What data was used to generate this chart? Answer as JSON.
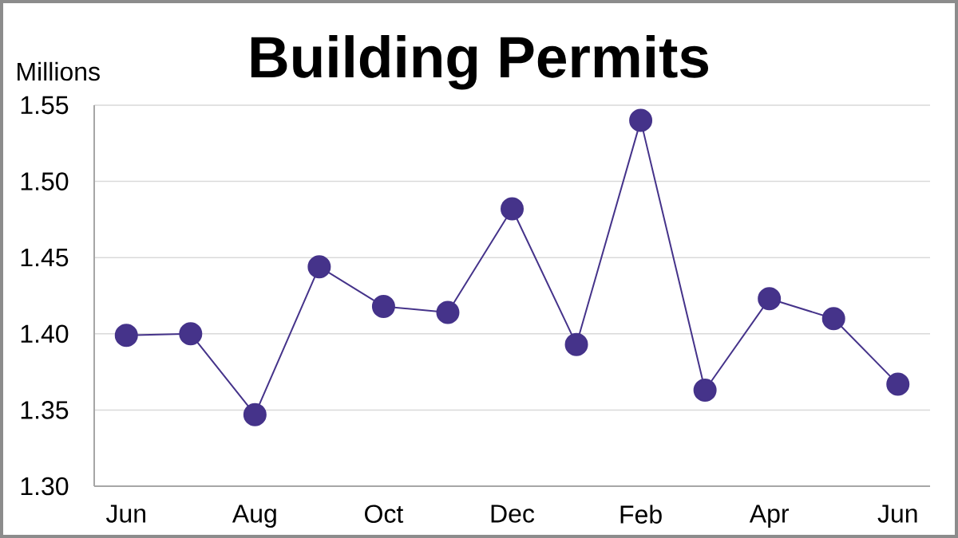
{
  "chart_data": {
    "type": "line",
    "title": "Building Permits",
    "ylabel": "Millions",
    "categories": [
      "Jun",
      null,
      "Aug",
      null,
      "Oct",
      null,
      "Dec",
      null,
      "Feb",
      null,
      "Apr",
      null,
      "Jun"
    ],
    "series": [
      {
        "color": "#45338a",
        "values": [
          1.399,
          1.4,
          1.347,
          1.444,
          1.418,
          1.414,
          1.482,
          1.393,
          1.54,
          1.363,
          1.423,
          1.41,
          1.367
        ]
      }
    ],
    "ylim": [
      1.3,
      1.55
    ],
    "yticks": [
      {
        "value": 1.3,
        "label": "1.30"
      },
      1.35,
      {
        "value": 1.4,
        "label": "1.40"
      },
      1.45,
      {
        "value": 1.5,
        "label": "1.50"
      },
      1.55
    ],
    "grid": "y",
    "marker": "circle",
    "line_style": "solid"
  }
}
